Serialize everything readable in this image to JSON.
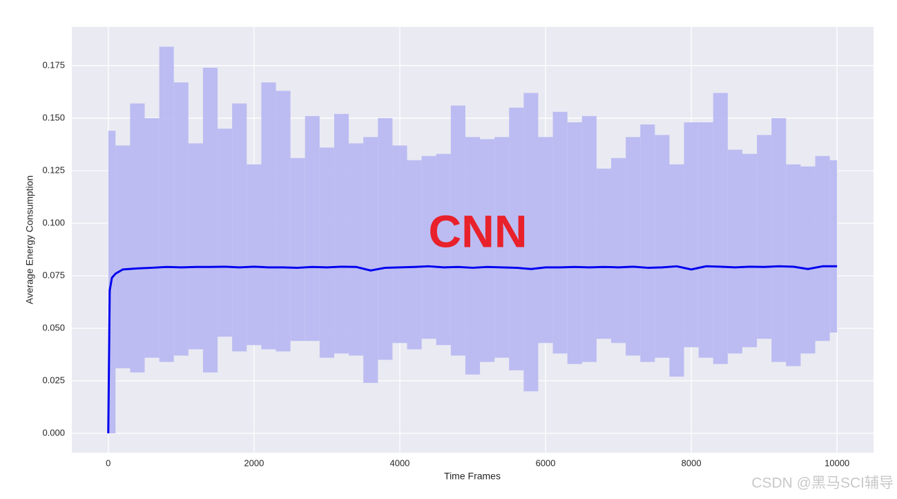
{
  "chart_data": {
    "type": "line",
    "annotation": "CNN",
    "annotation_color": "#e8212b",
    "watermark": "CSDN @黑马SCI辅导",
    "xlabel": "Time Frames",
    "ylabel": "Average Energy Consumption",
    "xlim": [
      -500,
      10500
    ],
    "ylim": [
      -0.0092,
      0.1934
    ],
    "xticks": [
      0,
      2000,
      4000,
      6000,
      8000,
      10000
    ],
    "yticks": [
      {
        "value": 0,
        "label": "0.000"
      },
      0.025,
      {
        "value": 0.05,
        "label": "0.050"
      },
      0.075,
      {
        "value": 0.1,
        "label": "0.100"
      },
      0.125,
      {
        "value": 0.15,
        "label": "0.150"
      },
      0.175
    ],
    "grid": true,
    "band": {
      "color": "#b9b9f2",
      "x": [
        0,
        200,
        400,
        600,
        800,
        1000,
        1200,
        1400,
        1600,
        1800,
        2000,
        2200,
        2400,
        2600,
        2800,
        3000,
        3200,
        3400,
        3600,
        3800,
        4000,
        4200,
        4400,
        4600,
        4800,
        5000,
        5200,
        5400,
        5600,
        5800,
        6000,
        6200,
        6400,
        6600,
        6800,
        7000,
        7200,
        7400,
        7600,
        7800,
        8000,
        8200,
        8400,
        8600,
        8800,
        9000,
        9200,
        9400,
        9600,
        9800,
        10000
      ],
      "upper": [
        0.144,
        0.137,
        0.157,
        0.15,
        0.184,
        0.167,
        0.138,
        0.174,
        0.145,
        0.157,
        0.128,
        0.167,
        0.163,
        0.131,
        0.151,
        0.136,
        0.152,
        0.138,
        0.141,
        0.15,
        0.137,
        0.13,
        0.132,
        0.133,
        0.156,
        0.141,
        0.14,
        0.141,
        0.155,
        0.162,
        0.141,
        0.153,
        0.148,
        0.151,
        0.126,
        0.131,
        0.141,
        0.147,
        0.142,
        0.128,
        0.148,
        0.148,
        0.162,
        0.135,
        0.133,
        0.142,
        0.15,
        0.128,
        0.127,
        0.132,
        0.13
      ],
      "lower": [
        0,
        0.031,
        0.029,
        0.036,
        0.034,
        0.037,
        0.04,
        0.029,
        0.046,
        0.039,
        0.042,
        0.04,
        0.039,
        0.044,
        0.044,
        0.036,
        0.038,
        0.037,
        0.024,
        0.035,
        0.043,
        0.04,
        0.045,
        0.042,
        0.037,
        0.028,
        0.034,
        0.036,
        0.03,
        0.02,
        0.043,
        0.038,
        0.033,
        0.034,
        0.045,
        0.043,
        0.037,
        0.034,
        0.036,
        0.027,
        0.041,
        0.036,
        0.033,
        0.038,
        0.041,
        0.045,
        0.034,
        0.032,
        0.038,
        0.044,
        0.048
      ]
    },
    "x": [
      0,
      20,
      50,
      100,
      200,
      400,
      600,
      800,
      1000,
      1200,
      1400,
      1600,
      1800,
      2000,
      2200,
      2400,
      2600,
      2800,
      3000,
      3200,
      3400,
      3600,
      3800,
      4000,
      4200,
      4400,
      4600,
      4800,
      5000,
      5200,
      5400,
      5600,
      5800,
      6000,
      6200,
      6400,
      6600,
      6800,
      7000,
      7200,
      7400,
      7600,
      7800,
      8000,
      8200,
      8400,
      8600,
      8800,
      9000,
      9200,
      9400,
      9600,
      9800,
      10000
    ],
    "series": [
      {
        "color": "#0000ee",
        "values": [
          0,
          0.068,
          0.074,
          0.076,
          0.078,
          0.0785,
          0.0788,
          0.0792,
          0.079,
          0.0792,
          0.0792,
          0.0793,
          0.079,
          0.0793,
          0.079,
          0.079,
          0.0788,
          0.0792,
          0.079,
          0.0793,
          0.0792,
          0.0775,
          0.0788,
          0.079,
          0.0792,
          0.0795,
          0.079,
          0.0792,
          0.0788,
          0.0792,
          0.079,
          0.0788,
          0.0782,
          0.079,
          0.079,
          0.0792,
          0.079,
          0.0792,
          0.079,
          0.0793,
          0.0788,
          0.079,
          0.0795,
          0.078,
          0.0795,
          0.0793,
          0.079,
          0.0793,
          0.0792,
          0.0795,
          0.0793,
          0.0782,
          0.0795,
          0.0795
        ]
      }
    ]
  }
}
